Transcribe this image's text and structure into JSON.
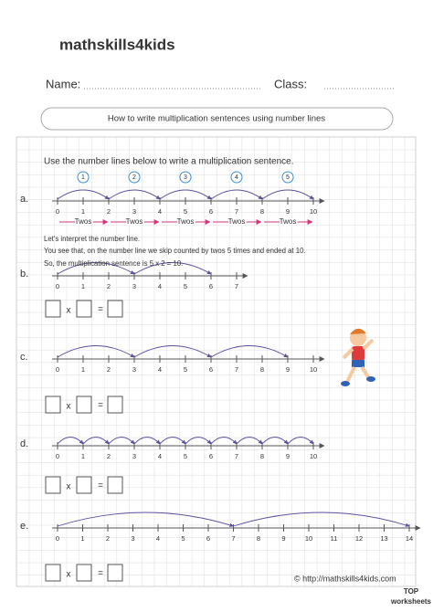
{
  "header": {
    "logo": "mathskills4kids",
    "name_label": "Name:",
    "class_label": "Class:",
    "title": "How to write multiplication sentences using number lines"
  },
  "instruction": "Use the number lines below to write a multiplication sentence.",
  "problems": [
    {
      "label": "a.",
      "ticks": [
        0,
        1,
        2,
        3,
        4,
        5,
        6,
        7,
        8,
        9,
        10
      ],
      "jumps": [
        1,
        2,
        3,
        4,
        5
      ],
      "group_labels": [
        "Twos",
        "Twos",
        "Twos",
        "Twos",
        "Twos"
      ]
    },
    {
      "label": "b.",
      "ticks": [
        0,
        1,
        2,
        3,
        4,
        5,
        6,
        7
      ]
    },
    {
      "label": "c.",
      "ticks": [
        0,
        1,
        2,
        3,
        4,
        5,
        6,
        7,
        8,
        9,
        10
      ]
    },
    {
      "label": "d.",
      "ticks": [
        0,
        1,
        2,
        3,
        4,
        5,
        6,
        7,
        8,
        9,
        10
      ]
    },
    {
      "label": "e.",
      "ticks": [
        0,
        1,
        2,
        3,
        4,
        5,
        6,
        7,
        8,
        9,
        10,
        11,
        12,
        13,
        14
      ]
    }
  ],
  "explanation": [
    "Let's interpret the number line.",
    "You see that, on the number line we skip counted by twos 5 times and ended at 10.",
    "So, the multiplication sentence is 5 x 2 = 10."
  ],
  "sentence": {
    "times": "x",
    "equals": "="
  },
  "footer": {
    "url": "© http://mathskills4kids.com",
    "badge_top": "TOP",
    "badge_bottom": "worksheets"
  }
}
